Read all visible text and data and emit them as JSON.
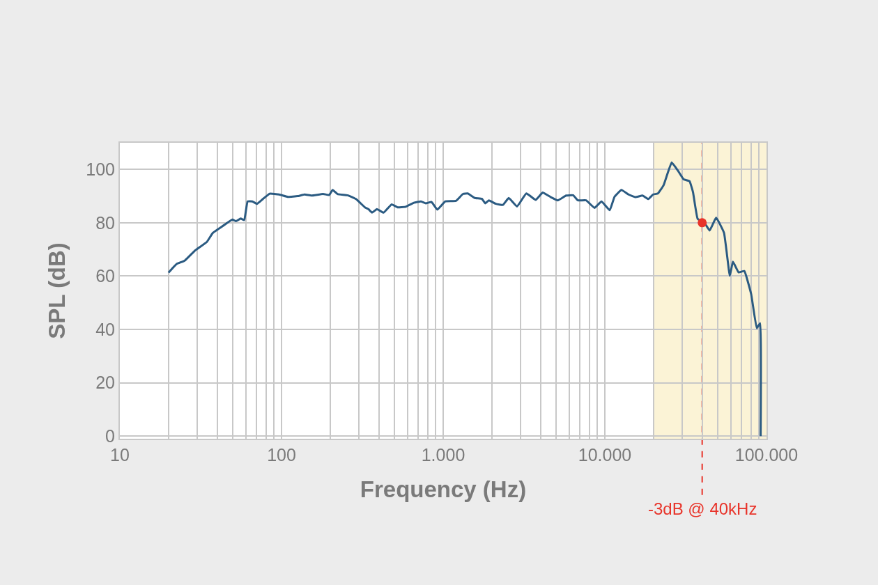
{
  "chart_data": {
    "type": "line",
    "xlabel": "Frequency (Hz)",
    "ylabel": "SPL (dB)",
    "log": "x",
    "grid": true,
    "marker": "none",
    "line_style": "solid",
    "xlim": [
      10,
      100000
    ],
    "ylim": [
      -1,
      110
    ],
    "xticks": [
      10,
      {
        "value": 20,
        "label": null
      },
      {
        "value": 30,
        "label": null
      },
      {
        "value": 40,
        "label": null
      },
      {
        "value": 50,
        "label": null
      },
      {
        "value": 60,
        "label": null
      },
      {
        "value": 70,
        "label": null
      },
      {
        "value": 80,
        "label": null
      },
      {
        "value": 90,
        "label": null
      },
      100,
      {
        "value": 200,
        "label": null
      },
      {
        "value": 300,
        "label": null
      },
      {
        "value": 400,
        "label": null
      },
      {
        "value": 500,
        "label": null
      },
      {
        "value": 600,
        "label": null
      },
      {
        "value": 700,
        "label": null
      },
      {
        "value": 800,
        "label": null
      },
      {
        "value": 900,
        "label": null
      },
      {
        "value": 1000,
        "label": "1.000"
      },
      {
        "value": 2000,
        "label": null
      },
      {
        "value": 3000,
        "label": null
      },
      {
        "value": 4000,
        "label": null
      },
      {
        "value": 5000,
        "label": null
      },
      {
        "value": 6000,
        "label": null
      },
      {
        "value": 7000,
        "label": null
      },
      {
        "value": 8000,
        "label": null
      },
      {
        "value": 9000,
        "label": null
      },
      {
        "value": 10000,
        "label": "10.000"
      },
      {
        "value": 20000,
        "label": null
      },
      {
        "value": 30000,
        "label": null
      },
      {
        "value": 40000,
        "label": null
      },
      {
        "value": 50000,
        "label": null
      },
      {
        "value": 60000,
        "label": null
      },
      {
        "value": 70000,
        "label": null
      },
      {
        "value": 80000,
        "label": null
      },
      {
        "value": 90000,
        "label": null
      },
      {
        "value": 100000,
        "label": "100.000"
      }
    ],
    "yticks": [
      0,
      20,
      40,
      60,
      80,
      100
    ],
    "bands": [
      {
        "axis": "x",
        "from": 20000,
        "to": 100000,
        "color": "#fbf3d6"
      }
    ],
    "ref_lines": [
      {
        "axis": "x",
        "value": 40000,
        "label": "-3dB @ 40kHz",
        "color": "#e8342a",
        "line_style": "dashed"
      }
    ],
    "series": [
      {
        "color": "#2b5b82",
        "x": [
          20,
          22.4,
          25.2,
          29.3,
          34.5,
          37.6,
          43.6,
          49.7,
          52.3,
          55.9,
          58.8,
          61.7,
          66,
          70.6,
          76.7,
          84.5,
          96.6,
          110,
          126,
          139,
          153,
          181,
          197,
          207,
          222,
          256,
          289,
          328,
          345,
          363,
          389,
          428,
          480,
          522,
          587,
          659,
          729,
          781,
          846,
          920,
          1030,
          1200,
          1326,
          1418,
          1567,
          1733,
          1823,
          1916,
          2119,
          2342,
          2543,
          2862,
          3268,
          3736,
          4123,
          4632,
          5121,
          5762,
          6371,
          6811,
          7657,
          8630,
          9537,
          10720,
          11470,
          12670,
          14000,
          15475,
          17100,
          18580,
          19900,
          21300,
          23100,
          25900,
          28200,
          30700,
          33400,
          35100,
          37500,
          41600,
          44500,
          48800,
          54600,
          59300,
          62000,
          67200,
          72900,
          80400,
          87000,
          91300,
          92000
        ],
        "values": [
          61.3,
          64.5,
          65.8,
          69.7,
          72.8,
          76.2,
          78.9,
          81.2,
          80.6,
          81.6,
          81.0,
          88.0,
          88.0,
          87.1,
          88.9,
          90.9,
          90.6,
          89.7,
          90.0,
          90.6,
          90.2,
          90.8,
          90.4,
          92.3,
          90.8,
          90.3,
          88.9,
          85.8,
          85.1,
          83.8,
          85.1,
          83.8,
          86.9,
          85.8,
          86.0,
          87.5,
          88.0,
          87.3,
          87.8,
          84.9,
          88.0,
          88.2,
          90.8,
          91.0,
          89.3,
          89.0,
          87.3,
          88.4,
          87.1,
          86.7,
          89.3,
          86.1,
          91.0,
          88.6,
          91.3,
          89.6,
          88.4,
          90.2,
          90.3,
          88.4,
          88.4,
          85.6,
          88.0,
          84.7,
          89.7,
          92.3,
          90.6,
          89.6,
          90.2,
          88.9,
          90.6,
          91.0,
          94.1,
          102.6,
          99.7,
          96.3,
          95.6,
          91.5,
          81.5,
          79.7,
          77.1,
          81.9,
          76.2,
          60.1,
          65.4,
          61.4,
          61.9,
          53.2,
          40.5,
          42.3,
          0
        ]
      },
      {
        "type": "scatter",
        "marker": "circle",
        "color": "#e8342a",
        "x": [
          40000
        ],
        "values": [
          80
        ]
      }
    ]
  }
}
